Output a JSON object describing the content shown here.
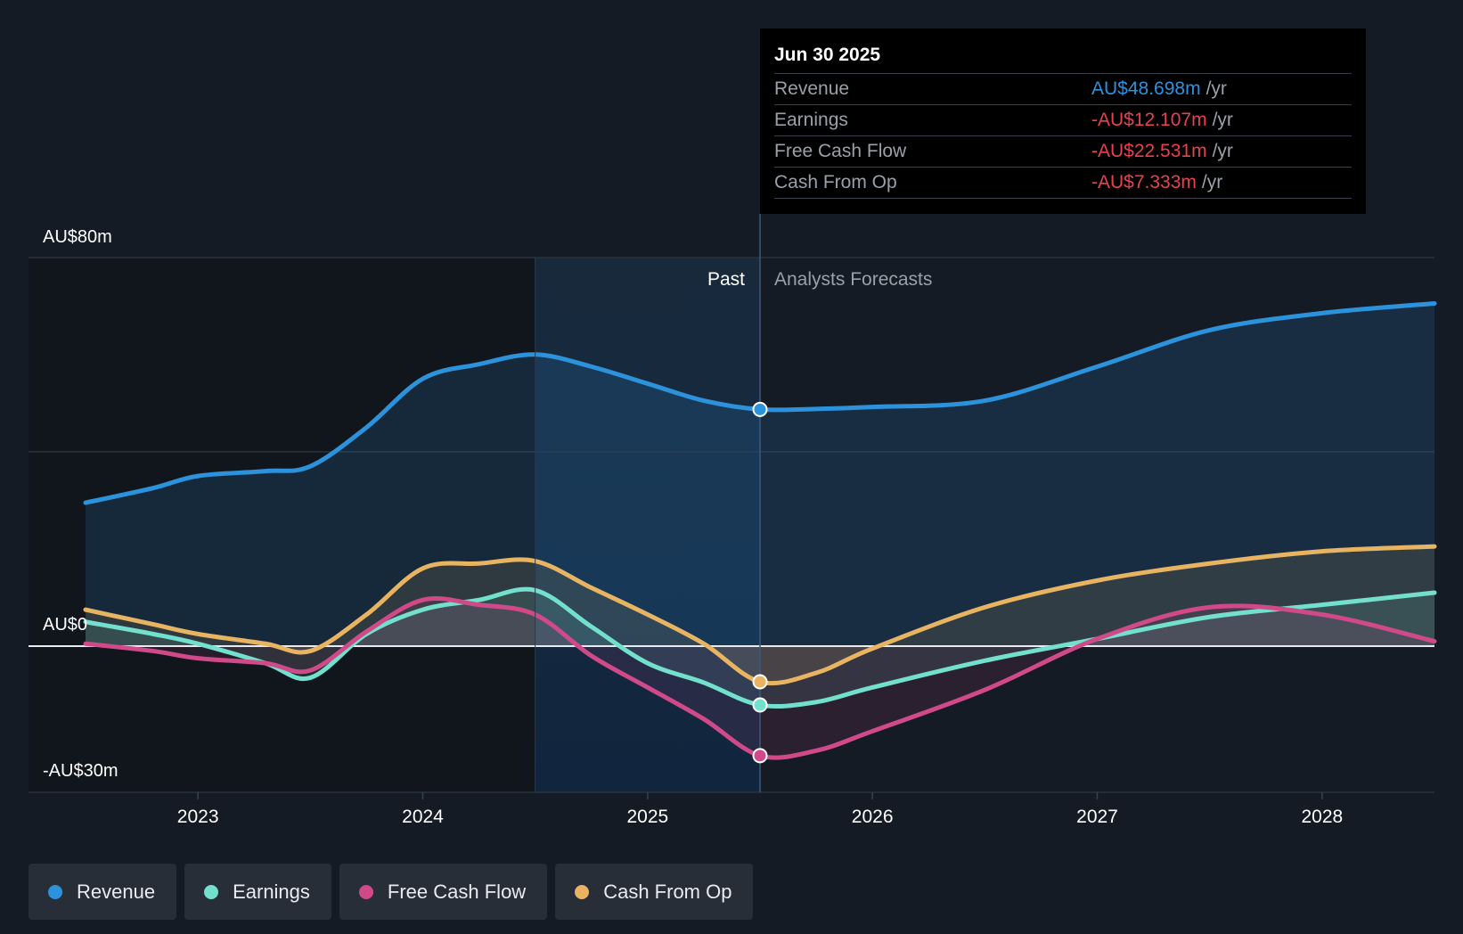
{
  "chart_data": {
    "type": "area",
    "y_axis": {
      "top_label": "AU$80m",
      "zero_label": "AU$0",
      "bottom_label": "-AU$30m",
      "ylim": [
        -30,
        80
      ]
    },
    "x_ticks": [
      "2023",
      "2024",
      "2025",
      "2026",
      "2027",
      "2028"
    ],
    "x_range": [
      2022.5,
      2028.5
    ],
    "divider_x": 2025.5,
    "shade_start_x": 2024.5,
    "past_label": "Past",
    "forecast_label": "Analysts Forecasts",
    "series": [
      {
        "name": "Revenue",
        "color": "#2d92dc",
        "points": [
          [
            2022.5,
            29.5
          ],
          [
            2022.8,
            32.5
          ],
          [
            2023.0,
            35
          ],
          [
            2023.3,
            36
          ],
          [
            2023.5,
            37
          ],
          [
            2023.75,
            45
          ],
          [
            2024.0,
            55
          ],
          [
            2024.25,
            58
          ],
          [
            2024.5,
            60
          ],
          [
            2024.75,
            57.5
          ],
          [
            2025.0,
            54
          ],
          [
            2025.25,
            50.5
          ],
          [
            2025.5,
            48.698
          ],
          [
            2025.75,
            48.8
          ],
          [
            2026.0,
            49.2
          ],
          [
            2026.5,
            50.5
          ],
          [
            2027.0,
            57.5
          ],
          [
            2027.5,
            65
          ],
          [
            2028.0,
            68.5
          ],
          [
            2028.5,
            70.5
          ]
        ]
      },
      {
        "name": "Cash From Op",
        "color": "#e8b462",
        "points": [
          [
            2022.5,
            7.5
          ],
          [
            2022.8,
            4.5
          ],
          [
            2023.0,
            2.5
          ],
          [
            2023.3,
            0.5
          ],
          [
            2023.5,
            -1
          ],
          [
            2023.75,
            6.5
          ],
          [
            2024.0,
            16
          ],
          [
            2024.25,
            17
          ],
          [
            2024.5,
            17.5
          ],
          [
            2024.75,
            12
          ],
          [
            2025.0,
            6.5
          ],
          [
            2025.25,
            0.5
          ],
          [
            2025.5,
            -7.333
          ],
          [
            2025.75,
            -5.5
          ],
          [
            2026.0,
            -0.5
          ],
          [
            2026.5,
            8
          ],
          [
            2027.0,
            13.5
          ],
          [
            2027.5,
            17
          ],
          [
            2028.0,
            19.5
          ],
          [
            2028.5,
            20.5
          ]
        ]
      },
      {
        "name": "Earnings",
        "color": "#72e0cc",
        "points": [
          [
            2022.5,
            5
          ],
          [
            2022.8,
            2.5
          ],
          [
            2023.0,
            0.5
          ],
          [
            2023.3,
            -3.5
          ],
          [
            2023.5,
            -6.5
          ],
          [
            2023.75,
            2.5
          ],
          [
            2024.0,
            7.5
          ],
          [
            2024.25,
            9.5
          ],
          [
            2024.5,
            11.5
          ],
          [
            2024.75,
            4
          ],
          [
            2025.0,
            -3.5
          ],
          [
            2025.25,
            -7.5
          ],
          [
            2025.5,
            -12.107
          ],
          [
            2025.75,
            -11.5
          ],
          [
            2026.0,
            -8.5
          ],
          [
            2026.5,
            -3
          ],
          [
            2027.0,
            1.5
          ],
          [
            2027.5,
            6
          ],
          [
            2028.0,
            8.5
          ],
          [
            2028.5,
            11
          ]
        ]
      },
      {
        "name": "Free Cash Flow",
        "color": "#d04a8a",
        "points": [
          [
            2022.5,
            0.5
          ],
          [
            2022.8,
            -1
          ],
          [
            2023.0,
            -2.5
          ],
          [
            2023.3,
            -3.5
          ],
          [
            2023.5,
            -5
          ],
          [
            2023.75,
            3
          ],
          [
            2024.0,
            9.5
          ],
          [
            2024.25,
            8.5
          ],
          [
            2024.5,
            6.5
          ],
          [
            2024.75,
            -2
          ],
          [
            2025.0,
            -8.5
          ],
          [
            2025.25,
            -15
          ],
          [
            2025.5,
            -22.531
          ],
          [
            2025.75,
            -21.5
          ],
          [
            2026.0,
            -17.5
          ],
          [
            2026.5,
            -9
          ],
          [
            2027.0,
            1.5
          ],
          [
            2027.5,
            8
          ],
          [
            2028.0,
            6.5
          ],
          [
            2028.5,
            1
          ]
        ]
      }
    ]
  },
  "tooltip": {
    "date": "Jun 30 2025",
    "rows": [
      {
        "label": "Revenue",
        "value": "AU$48.698m",
        "unit": "/yr",
        "color": "#2d92dc"
      },
      {
        "label": "Earnings",
        "value": "-AU$12.107m",
        "unit": "/yr",
        "color": "#e8404f"
      },
      {
        "label": "Free Cash Flow",
        "value": "-AU$22.531m",
        "unit": "/yr",
        "color": "#e8404f"
      },
      {
        "label": "Cash From Op",
        "value": "-AU$7.333m",
        "unit": "/yr",
        "color": "#e8404f"
      }
    ]
  },
  "legend": [
    {
      "label": "Revenue",
      "color": "#2d92dc"
    },
    {
      "label": "Earnings",
      "color": "#72e0cc"
    },
    {
      "label": "Free Cash Flow",
      "color": "#d04a8a"
    },
    {
      "label": "Cash From Op",
      "color": "#e8b462"
    }
  ]
}
